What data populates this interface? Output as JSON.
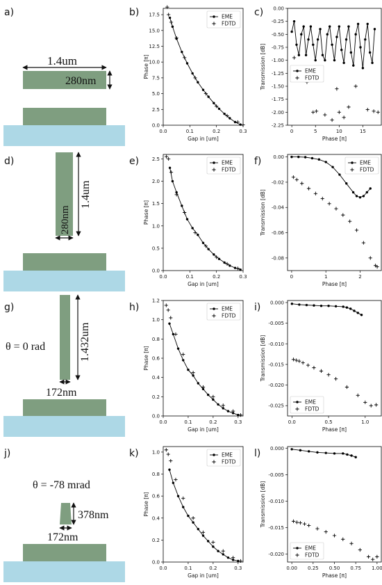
{
  "colors": {
    "waveguide": "#7f9e80",
    "substrate": "#add8e6",
    "markers": "#000000"
  },
  "panel_labels": [
    "a)",
    "b)",
    "c)",
    "d)",
    "e)",
    "f)",
    "g)",
    "h)",
    "i)",
    "j)",
    "k)",
    "l)"
  ],
  "schematics": {
    "a": {
      "width_label": "1.4um",
      "height_label": "280nm"
    },
    "d": {
      "width_label": "280nm",
      "height_label": "1.4um"
    },
    "g": {
      "angle_label": "θ = 0 rad",
      "height_label": "1.432um",
      "width_label": "172nm"
    },
    "j": {
      "angle_label": "θ = -78 mrad",
      "height_label": "378nm",
      "width_label": "172nm"
    }
  },
  "chart_data": [
    {
      "id": "b",
      "type": "scatter",
      "xlabel": "Gap in [um]",
      "ylabel": "Phase [π]",
      "xlim": [
        0,
        0.3
      ],
      "ylim": [
        0,
        18.5
      ],
      "xticks": [
        "0.0",
        "0.1",
        "0.2",
        "0.3"
      ],
      "yticks": [
        "0.0",
        "2.5",
        "5.0",
        "7.5",
        "10.0",
        "12.5",
        "15.0",
        "17.5"
      ],
      "legend": "top-right",
      "series": [
        {
          "name": "EME",
          "style": "line-dots",
          "x": [
            0.025,
            0.035,
            0.05,
            0.07,
            0.09,
            0.11,
            0.13,
            0.15,
            0.17,
            0.19,
            0.21,
            0.23,
            0.25,
            0.27,
            0.29
          ],
          "y": [
            17.0,
            15.6,
            13.7,
            11.6,
            9.8,
            8.2,
            6.8,
            5.6,
            4.5,
            3.5,
            2.6,
            1.8,
            1.1,
            0.5,
            0.1
          ]
        },
        {
          "name": "FDTD",
          "style": "plus",
          "x": [
            0.015,
            0.02,
            0.03,
            0.05,
            0.08,
            0.12,
            0.16,
            0.2,
            0.24,
            0.28,
            0.3
          ],
          "y": [
            18.7,
            17.5,
            16.3,
            13.8,
            10.7,
            7.5,
            5.0,
            3.0,
            1.5,
            0.5,
            0.05
          ]
        }
      ]
    },
    {
      "id": "c",
      "type": "scatter",
      "xlabel": "Phase [π]",
      "ylabel": "Transmission [dB]",
      "xlim": [
        -0.9,
        18.9
      ],
      "ylim": [
        -2.25,
        0
      ],
      "xticks": [
        "0",
        "5",
        "10",
        "15"
      ],
      "yticks": [
        "0.00",
        "-0.25",
        "-0.50",
        "-0.75",
        "-1.00",
        "-1.25",
        "-1.50",
        "-1.75",
        "-2.00",
        "-2.25"
      ],
      "legend": "center-left",
      "series": [
        {
          "name": "EME",
          "style": "line-dots",
          "x": [
            0,
            0.5,
            1,
            1.5,
            2,
            2.5,
            3,
            3.5,
            4,
            4.5,
            5,
            5.5,
            6,
            6.5,
            7,
            7.5,
            8,
            8.5,
            9,
            9.5,
            10,
            10.5,
            11,
            11.5,
            12,
            12.5,
            13,
            13.5,
            14,
            14.5,
            15,
            15.5,
            16,
            16.5,
            17,
            17.5
          ],
          "y": [
            -0.45,
            -0.25,
            -0.7,
            -0.9,
            -0.5,
            -0.35,
            -0.9,
            -0.6,
            -0.35,
            -0.7,
            -1.0,
            -0.6,
            -0.4,
            -0.9,
            -1.0,
            -0.5,
            -0.35,
            -0.7,
            -1.0,
            -0.55,
            -0.35,
            -0.8,
            -1.05,
            -0.6,
            -0.35,
            -0.85,
            -1.1,
            -0.5,
            -0.3,
            -0.75,
            -1.15,
            -0.6,
            -0.3,
            -0.85,
            -1.05,
            -0.4
          ]
        },
        {
          "name": "FDTD",
          "style": "plus",
          "x": [
            0.5,
            3.2,
            4.5,
            5.2,
            7.0,
            8.5,
            9.5,
            10.0,
            11.0,
            12.0,
            13.5,
            16.0,
            17.3,
            18.2
          ],
          "y": [
            -0.95,
            -1.42,
            -2.0,
            -1.98,
            -2.05,
            -2.15,
            -1.55,
            -2.0,
            -2.1,
            -1.9,
            -1.5,
            -1.95,
            -1.98,
            -2.0
          ]
        }
      ]
    },
    {
      "id": "e",
      "type": "scatter",
      "xlabel": "Gap in [um]",
      "ylabel": "Phase [π]",
      "xlim": [
        0,
        0.3
      ],
      "ylim": [
        0,
        2.6
      ],
      "xticks": [
        "0.0",
        "0.1",
        "0.2",
        "0.3"
      ],
      "yticks": [
        "0.0",
        "0.5",
        "1.0",
        "1.5",
        "2.0",
        "2.5"
      ],
      "legend": "top-right",
      "series": [
        {
          "name": "EME",
          "style": "line-dots",
          "x": [
            0.025,
            0.035,
            0.05,
            0.07,
            0.09,
            0.11,
            0.13,
            0.15,
            0.17,
            0.19,
            0.21,
            0.23,
            0.25,
            0.27,
            0.29
          ],
          "y": [
            2.3,
            2.0,
            1.75,
            1.45,
            1.15,
            0.95,
            0.8,
            0.62,
            0.48,
            0.36,
            0.26,
            0.18,
            0.11,
            0.06,
            0.02
          ]
        },
        {
          "name": "FDTD",
          "style": "plus",
          "x": [
            0.012,
            0.02,
            0.03,
            0.05,
            0.08,
            0.12,
            0.16,
            0.2,
            0.24,
            0.28
          ],
          "y": [
            2.55,
            2.5,
            2.2,
            1.7,
            1.3,
            0.85,
            0.55,
            0.3,
            0.15,
            0.05
          ]
        }
      ]
    },
    {
      "id": "f",
      "type": "scatter",
      "xlabel": "Phase [π]",
      "ylabel": "Transmission [dB]",
      "xlim": [
        -0.12,
        2.62
      ],
      "ylim": [
        -0.09,
        0.002
      ],
      "xticks": [
        "0",
        "1",
        "2"
      ],
      "yticks": [
        "0.00",
        "-0.02",
        "-0.04",
        "-0.06",
        "-0.08"
      ],
      "legend": "top-right",
      "series": [
        {
          "name": "EME",
          "style": "line-dots",
          "x": [
            0,
            0.2,
            0.4,
            0.6,
            0.8,
            1.0,
            1.2,
            1.4,
            1.6,
            1.8,
            1.9,
            2.0,
            2.1,
            2.2,
            2.3
          ],
          "y": [
            0,
            0,
            -0.0002,
            -0.001,
            -0.002,
            -0.004,
            -0.008,
            -0.014,
            -0.021,
            -0.028,
            -0.031,
            -0.032,
            -0.031,
            -0.028,
            -0.025
          ]
        },
        {
          "name": "FDTD",
          "style": "plus",
          "x": [
            0.05,
            0.15,
            0.3,
            0.5,
            0.7,
            0.9,
            1.1,
            1.3,
            1.5,
            1.7,
            1.9,
            2.1,
            2.3,
            2.45,
            2.5
          ],
          "y": [
            -0.016,
            -0.018,
            -0.021,
            -0.025,
            -0.029,
            -0.033,
            -0.037,
            -0.041,
            -0.046,
            -0.051,
            -0.058,
            -0.068,
            -0.08,
            -0.086,
            -0.087
          ]
        }
      ]
    },
    {
      "id": "h",
      "type": "scatter",
      "xlabel": "Gap in [um]",
      "ylabel": "Phase [π]",
      "xlim": [
        0,
        0.32
      ],
      "ylim": [
        0,
        1.2
      ],
      "xticks": [
        "0.0",
        "0.1",
        "0.2",
        "0.3"
      ],
      "yticks": [
        "0.0",
        "0.2",
        "0.4",
        "0.6",
        "0.8",
        "1.0",
        "1.2"
      ],
      "legend": "top-right",
      "series": [
        {
          "name": "EME",
          "style": "line-dots",
          "x": [
            0.025,
            0.04,
            0.06,
            0.08,
            0.1,
            0.12,
            0.14,
            0.16,
            0.18,
            0.2,
            0.22,
            0.24,
            0.26,
            0.28,
            0.3
          ],
          "y": [
            0.96,
            0.85,
            0.7,
            0.58,
            0.48,
            0.42,
            0.34,
            0.28,
            0.22,
            0.17,
            0.12,
            0.08,
            0.05,
            0.03,
            0.01
          ]
        },
        {
          "name": "FDTD",
          "style": "plus",
          "x": [
            0.012,
            0.02,
            0.03,
            0.05,
            0.08,
            0.12,
            0.16,
            0.2,
            0.24,
            0.28,
            0.31
          ],
          "y": [
            1.15,
            1.1,
            1.02,
            0.85,
            0.64,
            0.45,
            0.3,
            0.2,
            0.11,
            0.05,
            0.01
          ]
        }
      ]
    },
    {
      "id": "i",
      "type": "scatter",
      "xlabel": "Phase [π]",
      "ylabel": "Transmission [dB]",
      "xlim": [
        -0.06,
        1.22
      ],
      "ylim": [
        -0.0275,
        0.0005
      ],
      "xticks": [
        "0.0",
        "0.5",
        "1.0"
      ],
      "yticks": [
        "0.000",
        "-0.005",
        "-0.010",
        "-0.015",
        "-0.020",
        "-0.025"
      ],
      "legend": "bottom-left",
      "series": [
        {
          "name": "EME",
          "style": "line-dots",
          "x": [
            0,
            0.1,
            0.2,
            0.3,
            0.4,
            0.5,
            0.6,
            0.7,
            0.75,
            0.8,
            0.85,
            0.9,
            0.95
          ],
          "y": [
            -0.0003,
            -0.0005,
            -0.0006,
            -0.0007,
            -0.0008,
            -0.0008,
            -0.0009,
            -0.001,
            -0.0012,
            -0.0015,
            -0.002,
            -0.0025,
            -0.003
          ]
        },
        {
          "name": "FDTD",
          "style": "plus",
          "x": [
            0.02,
            0.06,
            0.1,
            0.15,
            0.22,
            0.3,
            0.4,
            0.5,
            0.6,
            0.75,
            0.9,
            1.0,
            1.08,
            1.15
          ],
          "y": [
            -0.0138,
            -0.014,
            -0.0142,
            -0.0146,
            -0.0152,
            -0.0158,
            -0.0166,
            -0.0175,
            -0.0185,
            -0.0205,
            -0.0225,
            -0.0242,
            -0.025,
            -0.0248
          ]
        }
      ]
    },
    {
      "id": "k",
      "type": "scatter",
      "xlabel": "Gap in [um]",
      "ylabel": "Phase [π]",
      "xlim": [
        0,
        0.32
      ],
      "ylim": [
        0,
        1.05
      ],
      "xticks": [
        "0.0",
        "0.1",
        "0.2",
        "0.3"
      ],
      "yticks": [
        "0.0",
        "0.2",
        "0.4",
        "0.6",
        "0.8",
        "1.0"
      ],
      "legend": "top-right",
      "series": [
        {
          "name": "EME",
          "style": "line-dots",
          "x": [
            0.025,
            0.04,
            0.06,
            0.08,
            0.1,
            0.12,
            0.14,
            0.16,
            0.18,
            0.2,
            0.22,
            0.24,
            0.26,
            0.28,
            0.3
          ],
          "y": [
            0.84,
            0.72,
            0.6,
            0.5,
            0.42,
            0.36,
            0.3,
            0.24,
            0.19,
            0.14,
            0.1,
            0.07,
            0.04,
            0.02,
            0.01
          ]
        },
        {
          "name": "FDTD",
          "style": "plus",
          "x": [
            0.012,
            0.02,
            0.03,
            0.05,
            0.08,
            0.12,
            0.16,
            0.2,
            0.24,
            0.28,
            0.31
          ],
          "y": [
            1.02,
            0.98,
            0.92,
            0.75,
            0.58,
            0.4,
            0.27,
            0.18,
            0.1,
            0.04,
            0.01
          ]
        }
      ]
    },
    {
      "id": "l",
      "type": "scatter",
      "xlabel": "Phase [π]",
      "ylabel": "Transmission [dB]",
      "xlim": [
        -0.05,
        1.05
      ],
      "ylim": [
        -0.0215,
        0.0003
      ],
      "xticks": [
        "0.00",
        "0.25",
        "0.50",
        "0.75",
        "1.00"
      ],
      "yticks": [
        "0.000",
        "-0.005",
        "-0.010",
        "-0.015",
        "-0.020"
      ],
      "legend": "bottom-left",
      "series": [
        {
          "name": "EME",
          "style": "line-dots",
          "x": [
            0,
            0.1,
            0.2,
            0.3,
            0.4,
            0.5,
            0.6,
            0.65,
            0.7,
            0.75
          ],
          "y": [
            -0.0002,
            -0.0004,
            -0.0006,
            -0.0008,
            -0.0009,
            -0.001,
            -0.001,
            -0.0012,
            -0.0014,
            -0.0017
          ]
        },
        {
          "name": "FDTD",
          "style": "plus",
          "x": [
            0.02,
            0.06,
            0.1,
            0.15,
            0.2,
            0.3,
            0.4,
            0.5,
            0.6,
            0.7,
            0.8,
            0.9,
            0.95,
            1.0
          ],
          "y": [
            -0.0138,
            -0.014,
            -0.0141,
            -0.0143,
            -0.0146,
            -0.0152,
            -0.0158,
            -0.0165,
            -0.0172,
            -0.018,
            -0.0192,
            -0.0205,
            -0.021,
            -0.0205
          ]
        }
      ]
    }
  ]
}
